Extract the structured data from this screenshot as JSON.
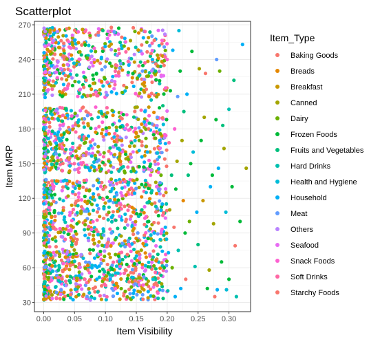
{
  "chart_data": {
    "type": "scatter",
    "title": "Scatterplot",
    "xlabel": "Item Visibility",
    "ylabel": "Item MRP",
    "xlim": [
      -0.015,
      0.335
    ],
    "ylim": [
      22,
      273
    ],
    "xticks": [
      0.0,
      0.05,
      0.1,
      0.15,
      0.2,
      0.25,
      0.3
    ],
    "xtick_labels": [
      "0.00",
      "0.05",
      "0.10",
      "0.15",
      "0.20",
      "0.25",
      "0.30"
    ],
    "yticks": [
      30,
      60,
      90,
      120,
      150,
      180,
      210,
      240,
      270
    ],
    "ytick_labels": [
      "30",
      "60",
      "90",
      "120",
      "150",
      "180",
      "210",
      "240",
      "270"
    ],
    "grid": true,
    "legend": {
      "title": "Item_Type",
      "position": "right"
    },
    "series": [
      {
        "name": "Baking Goods",
        "color": "#F8766D"
      },
      {
        "name": "Breads",
        "color": "#E58700"
      },
      {
        "name": "Breakfast",
        "color": "#C99800"
      },
      {
        "name": "Canned",
        "color": "#A3A500"
      },
      {
        "name": "Dairy",
        "color": "#6BB100"
      },
      {
        "name": "Frozen Foods",
        "color": "#00BA38"
      },
      {
        "name": "Fruits and Vegetables",
        "color": "#00BF7D"
      },
      {
        "name": "Hard Drinks",
        "color": "#00C0AF"
      },
      {
        "name": "Health and Hygiene",
        "color": "#00BCD8"
      },
      {
        "name": "Household",
        "color": "#00B0F6"
      },
      {
        "name": "Meat",
        "color": "#619CFF"
      },
      {
        "name": "Others",
        "color": "#B983FF"
      },
      {
        "name": "Seafood",
        "color": "#E76BF3"
      },
      {
        "name": "Snack Foods",
        "color": "#FD61D1"
      },
      {
        "name": "Soft Drinks",
        "color": "#FF67A4"
      },
      {
        "name": "Starchy Foods",
        "color": "#F8766D"
      }
    ],
    "points": [
      [
        0.328,
        146,
        3
      ],
      [
        0.322,
        253,
        9
      ],
      [
        0.318,
        100,
        5
      ],
      [
        0.31,
        79,
        0
      ],
      [
        0.312,
        35,
        7
      ],
      [
        0.308,
        222,
        6
      ],
      [
        0.305,
        130,
        5
      ],
      [
        0.3,
        197,
        7
      ],
      [
        0.3,
        50,
        5
      ],
      [
        0.296,
        41,
        8
      ],
      [
        0.295,
        108,
        8
      ],
      [
        0.292,
        163,
        3
      ],
      [
        0.29,
        183,
        6
      ],
      [
        0.288,
        65,
        5
      ],
      [
        0.285,
        230,
        4
      ],
      [
        0.283,
        146,
        9
      ],
      [
        0.281,
        41,
        9
      ],
      [
        0.28,
        240,
        10
      ],
      [
        0.279,
        188,
        5
      ],
      [
        0.277,
        35,
        0
      ],
      [
        0.275,
        98,
        3
      ],
      [
        0.273,
        140,
        5
      ],
      [
        0.27,
        130,
        9
      ],
      [
        0.268,
        58,
        3
      ],
      [
        0.265,
        42,
        5
      ],
      [
        0.262,
        228,
        0
      ],
      [
        0.26,
        190,
        3
      ],
      [
        0.258,
        118,
        2
      ],
      [
        0.255,
        170,
        5
      ],
      [
        0.252,
        232,
        3
      ],
      [
        0.25,
        80,
        6
      ],
      [
        0.248,
        108,
        9
      ],
      [
        0.245,
        61,
        7
      ],
      [
        0.242,
        160,
        8
      ],
      [
        0.24,
        247,
        5
      ],
      [
        0.238,
        150,
        5
      ],
      [
        0.236,
        100,
        4
      ],
      [
        0.234,
        140,
        6
      ],
      [
        0.232,
        210,
        9
      ],
      [
        0.23,
        50,
        0
      ],
      [
        0.229,
        90,
        5
      ],
      [
        0.227,
        195,
        6
      ],
      [
        0.226,
        118,
        1
      ],
      [
        0.224,
        170,
        3
      ],
      [
        0.222,
        42,
        9
      ],
      [
        0.221,
        230,
        5
      ],
      [
        0.219,
        265,
        8
      ],
      [
        0.218,
        75,
        7
      ],
      [
        0.217,
        208,
        10
      ],
      [
        0.216,
        152,
        3
      ],
      [
        0.214,
        128,
        5
      ],
      [
        0.213,
        35,
        9
      ],
      [
        0.212,
        180,
        13
      ],
      [
        0.211,
        95,
        0
      ],
      [
        0.209,
        248,
        9
      ],
      [
        0.208,
        60,
        4
      ],
      [
        0.207,
        140,
        6
      ],
      [
        0.205,
        213,
        5
      ],
      [
        0.204,
        110,
        3
      ],
      [
        0.203,
        168,
        14
      ],
      [
        0.202,
        73,
        9
      ],
      [
        0.201,
        40,
        7
      ],
      [
        0.2,
        240,
        13
      ],
      [
        0.199,
        188,
        5
      ],
      [
        0.198,
        125,
        2
      ],
      [
        0.197,
        95,
        9
      ],
      [
        0.196,
        154,
        0
      ],
      [
        0.195,
        60,
        5
      ],
      [
        0.194,
        226,
        12
      ],
      [
        0.193,
        200,
        6
      ],
      [
        0.192,
        115,
        9
      ],
      [
        0.191,
        46,
        3
      ],
      [
        0.19,
        140,
        4
      ],
      [
        0.189,
        78,
        7
      ],
      [
        0.188,
        170,
        9
      ],
      [
        0.187,
        252,
        8
      ],
      [
        0.186,
        105,
        5
      ],
      [
        0.185,
        38,
        13
      ],
      [
        0.184,
        190,
        10
      ],
      [
        0.183,
        130,
        12
      ],
      [
        0.182,
        66,
        1
      ],
      [
        0.181,
        230,
        6
      ],
      [
        0.18,
        152,
        0
      ],
      [
        0.179,
        90,
        9
      ],
      [
        0.178,
        175,
        5
      ],
      [
        0.177,
        50,
        8
      ],
      [
        0.176,
        240,
        9
      ],
      [
        0.175,
        115,
        3
      ],
      [
        0.174,
        205,
        7
      ],
      [
        0.173,
        140,
        13
      ],
      [
        0.172,
        70,
        14
      ],
      [
        0.171,
        185,
        6
      ],
      [
        0.17,
        100,
        5
      ],
      [
        0.169,
        34,
        2
      ],
      [
        0.168,
        160,
        9
      ],
      [
        0.167,
        255,
        4
      ],
      [
        0.166,
        125,
        8
      ],
      [
        0.165,
        58,
        12
      ],
      [
        0.164,
        195,
        9
      ],
      [
        0.163,
        88,
        0
      ],
      [
        0.162,
        147,
        5
      ],
      [
        0.161,
        45,
        13
      ],
      [
        0.16,
        230,
        10
      ],
      [
        0.159,
        110,
        6
      ],
      [
        0.158,
        178,
        3
      ]
    ],
    "bands": [
      [
        32,
        76
      ],
      [
        78,
        137
      ],
      [
        142,
        199
      ],
      [
        207,
        268
      ]
    ]
  }
}
